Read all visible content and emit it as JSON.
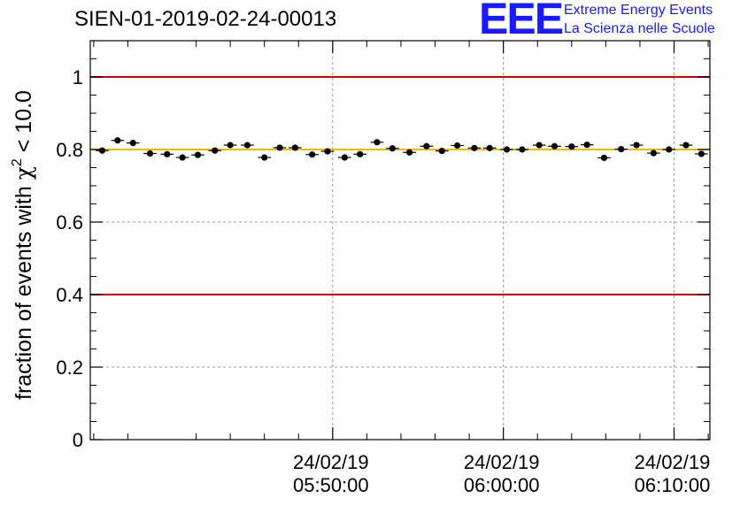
{
  "header": {
    "run_id": "SIEN-01-2019-02-24-00013",
    "logo_mark": "EEE",
    "logo_line1": "Extreme Energy Events",
    "logo_line2": "La Scienza nelle Scuole"
  },
  "colors": {
    "threshold_line": "#e00000",
    "reference_line": "#f5b800",
    "logo": "#1a1aff",
    "markers": "#000000",
    "grid": "#999999"
  },
  "chart_data": {
    "type": "scatter",
    "title": "SIEN-01-2019-02-24-00013",
    "xlabel": "",
    "ylabel": "fraction of events with χ² < 10.0",
    "ylabel_parts": {
      "prefix": "fraction of events with ",
      "symbol": "χ",
      "exponent": "2",
      "suffix": " < 10.0"
    },
    "ylim": [
      0,
      1.1
    ],
    "yticks": [
      0,
      0.2,
      0.4,
      0.6,
      0.8,
      1
    ],
    "ytick_labels": [
      "0",
      "0.2",
      "0.4",
      "0.6",
      "0.8",
      "1"
    ],
    "xlim_minutes": [
      -14.2,
      22.1
    ],
    "xticks": [
      {
        "minutes": 0,
        "date": "24/02/19",
        "time": "05:50:00"
      },
      {
        "minutes": 10,
        "date": "24/02/19",
        "time": "06:00:00"
      },
      {
        "minutes": 20,
        "date": "24/02/19",
        "time": "06:10:00"
      }
    ],
    "x_reference_time": "05:50:00",
    "grid": true,
    "bin_half_width_minutes": 0.38,
    "points_minutes": [
      -13.5,
      -12.6,
      -11.7,
      -10.7,
      -9.7,
      -8.8,
      -7.9,
      -6.9,
      -6.0,
      -5.0,
      -4.0,
      -3.1,
      -2.2,
      -1.2,
      -0.3,
      0.7,
      1.6,
      2.6,
      3.5,
      4.5,
      5.5,
      6.4,
      7.3,
      8.3,
      9.2,
      10.2,
      11.1,
      12.1,
      13.0,
      14.0,
      14.9,
      15.9,
      16.9,
      17.8,
      18.8,
      19.7,
      20.7,
      21.6
    ],
    "points_values": [
      0.797,
      0.825,
      0.818,
      0.789,
      0.787,
      0.778,
      0.785,
      0.797,
      0.812,
      0.812,
      0.778,
      0.805,
      0.805,
      0.786,
      0.795,
      0.778,
      0.787,
      0.82,
      0.803,
      0.792,
      0.809,
      0.796,
      0.811,
      0.804,
      0.804,
      0.8,
      0.8,
      0.812,
      0.809,
      0.808,
      0.813,
      0.777,
      0.801,
      0.812,
      0.79,
      0.8,
      0.812,
      0.788
    ],
    "points_errors": [
      0.006,
      0.006,
      0.006,
      0.006,
      0.006,
      0.006,
      0.006,
      0.006,
      0.006,
      0.006,
      0.006,
      0.006,
      0.006,
      0.006,
      0.006,
      0.006,
      0.006,
      0.006,
      0.006,
      0.006,
      0.006,
      0.006,
      0.006,
      0.006,
      0.006,
      0.006,
      0.006,
      0.006,
      0.006,
      0.006,
      0.006,
      0.006,
      0.006,
      0.006,
      0.006,
      0.006,
      0.006,
      0.006
    ],
    "horizontal_lines": [
      {
        "name": "upper-threshold",
        "y": 1.0,
        "color": "#e00000"
      },
      {
        "name": "lower-threshold",
        "y": 0.4,
        "color": "#e00000"
      },
      {
        "name": "reference",
        "y": 0.8,
        "color": "#f5b800"
      }
    ]
  }
}
